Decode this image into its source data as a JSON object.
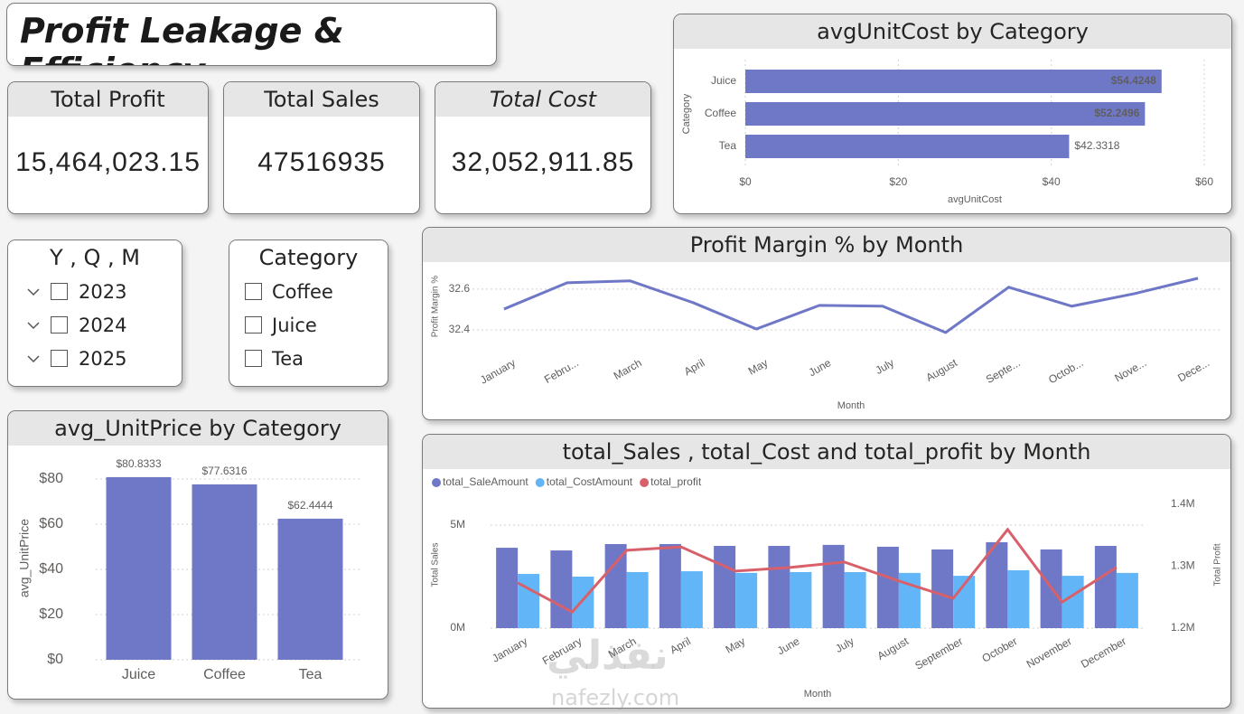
{
  "header": {
    "title": "Profit Leakage & Efficiency"
  },
  "cards": [
    {
      "label": "Total Profit",
      "value": "15,464,023.15"
    },
    {
      "label": "Total Sales",
      "value": "47516935"
    },
    {
      "label": "Total Cost",
      "value": "32,052,911.85"
    }
  ],
  "slicers": [
    {
      "title": "Y , Q , M",
      "items": [
        "2023",
        "2024",
        "2025"
      ]
    },
    {
      "title": "Category",
      "items": [
        "Coffee",
        "Juice",
        "Tea"
      ]
    }
  ],
  "watermark": {
    "arabic": "نفذلي",
    "latin": "nafezly.com"
  },
  "chart_data": [
    {
      "type": "bar",
      "orientation": "horizontal",
      "title": "avgUnitCost by Category",
      "categories": [
        "Juice",
        "Coffee",
        "Tea"
      ],
      "values": [
        54.4248,
        52.2496,
        42.3318
      ],
      "value_labels": [
        "$54.4248",
        "$52.2496",
        "$42.3318"
      ],
      "color": "#6f78c6",
      "x_label": "avgUnitCost",
      "y_label": "Category",
      "xlim": [
        0,
        60
      ],
      "xticks": [
        {
          "value": 0,
          "label": "$0"
        },
        {
          "value": 20,
          "label": "$20"
        },
        {
          "value": 40,
          "label": "$40"
        },
        {
          "value": 60,
          "label": "$60"
        }
      ],
      "grid": true
    },
    {
      "type": "line",
      "title": "Profit Margin % by Month",
      "categories": [
        "January",
        "Febru...",
        "March",
        "April",
        "May",
        "June",
        "July",
        "August",
        "Septe...",
        "Octob...",
        "Nove...",
        "Dece..."
      ],
      "values": [
        32.502,
        32.631,
        32.64,
        32.533,
        32.404,
        32.52,
        32.516,
        32.387,
        32.609,
        32.516,
        32.578,
        32.653
      ],
      "color": "#6f78c6",
      "x_label": "Month",
      "y_label": "Profit Margin %",
      "ylim": [
        32.32,
        32.71
      ],
      "yticks": [
        32.4,
        32.6
      ],
      "grid": true
    },
    {
      "type": "bar",
      "orientation": "vertical",
      "title": "avg_UnitPrice by Category",
      "categories": [
        "Juice",
        "Coffee",
        "Tea"
      ],
      "values": [
        80.8333,
        77.6316,
        62.4444
      ],
      "value_labels": [
        "$80.8333",
        "$77.6316",
        "$62.4444"
      ],
      "color": "#6f78c6",
      "y_label": "avg_UnitPrice",
      "ylim": [
        0,
        90
      ],
      "yticks": [
        {
          "value": 0,
          "label": "$0"
        },
        {
          "value": 20,
          "label": "$20"
        },
        {
          "value": 40,
          "label": "$40"
        },
        {
          "value": 60,
          "label": "$60"
        },
        {
          "value": 80,
          "label": "$80"
        }
      ],
      "grid": true
    },
    {
      "type": "combo",
      "title": "total_Sales , total_Cost and total_profit by Month",
      "categories": [
        "January",
        "February",
        "March",
        "April",
        "May",
        "June",
        "July",
        "August",
        "September",
        "October",
        "November",
        "December"
      ],
      "series": [
        {
          "name": "total_SaleAmount",
          "type": "bar",
          "color": "#6f78c6",
          "values": [
            3900000,
            3770000,
            4080000,
            4080000,
            3990000,
            3990000,
            4040000,
            3950000,
            3820000,
            4170000,
            3820000,
            3990000
          ]
        },
        {
          "name": "total_CostAmount",
          "type": "bar",
          "color": "#62b6f7",
          "values": [
            2630000,
            2500000,
            2720000,
            2760000,
            2680000,
            2720000,
            2720000,
            2680000,
            2540000,
            2810000,
            2540000,
            2680000
          ]
        },
        {
          "name": "total_profit",
          "type": "line",
          "axis": "y2",
          "color": "#d8606b",
          "values": [
            1273000,
            1226000,
            1325500,
            1331000,
            1292000,
            1297800,
            1306600,
            1276000,
            1248000,
            1359000,
            1242000,
            1298000
          ]
        }
      ],
      "x_label": "Month",
      "y_label": "Total Sales",
      "y2_label": "Total Profit",
      "ylim": [
        0,
        6140000
      ],
      "yticks": [
        {
          "value": 0,
          "label": "0M"
        },
        {
          "value": 5000000,
          "label": "5M"
        }
      ],
      "y2lim": [
        1200000,
        1404000
      ],
      "y2ticks": [
        {
          "value": 1200000,
          "label": "1.2M"
        },
        {
          "value": 1300000,
          "label": "1.3M"
        },
        {
          "value": 1400000,
          "label": "1.4M"
        }
      ],
      "grid": true,
      "legend": "top-left"
    }
  ]
}
